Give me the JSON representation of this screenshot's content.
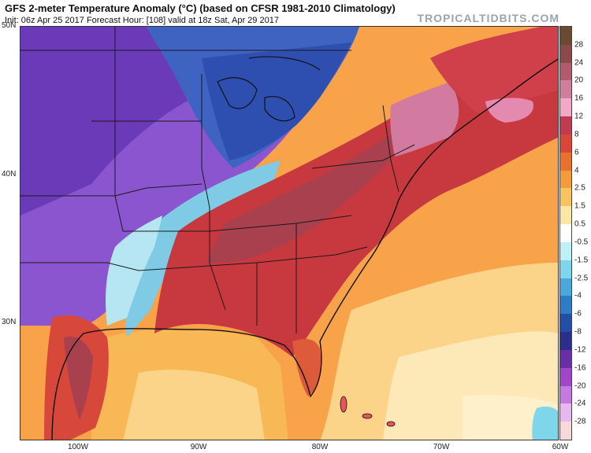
{
  "header": {
    "title": "GFS 2-meter Temperature Anomaly (°C) (based on CFSR 1981-2010 Climatology)",
    "subtitle": "Init: 06z Apr 25 2017   Forecast Hour: [108]   valid at 18z Sat, Apr 29 2017",
    "brand": "TROPICALTIDBITS.COM"
  },
  "map": {
    "latitude_labels": [
      "50N",
      "40N",
      "30N"
    ],
    "longitude_labels": [
      "100W",
      "90W",
      "80W",
      "70W",
      "60W"
    ]
  },
  "colorbar": {
    "levels": [
      "28",
      "24",
      "20",
      "16",
      "12",
      "8",
      "6",
      "4",
      "2.5",
      "1.5",
      "0.5",
      "-0.5",
      "-1.5",
      "-2.5",
      "-4",
      "-6",
      "-8",
      "-12",
      "-16",
      "-20",
      "-24",
      "-28"
    ],
    "colors": [
      "#6b4a32",
      "#8a4a4a",
      "#b25a6e",
      "#cf7f9c",
      "#f2a8c8",
      "#c03a52",
      "#d8483a",
      "#e8712e",
      "#f59b3a",
      "#f7c460",
      "#fae7a6",
      "#ffffff",
      "#bff0f5",
      "#7fd6ea",
      "#4aa8dc",
      "#2e7bc6",
      "#244ea6",
      "#2b2f8c",
      "#6a2fa8",
      "#a046c8",
      "#c57ae0",
      "#e7b8f0",
      "#f7d9d9"
    ]
  }
}
